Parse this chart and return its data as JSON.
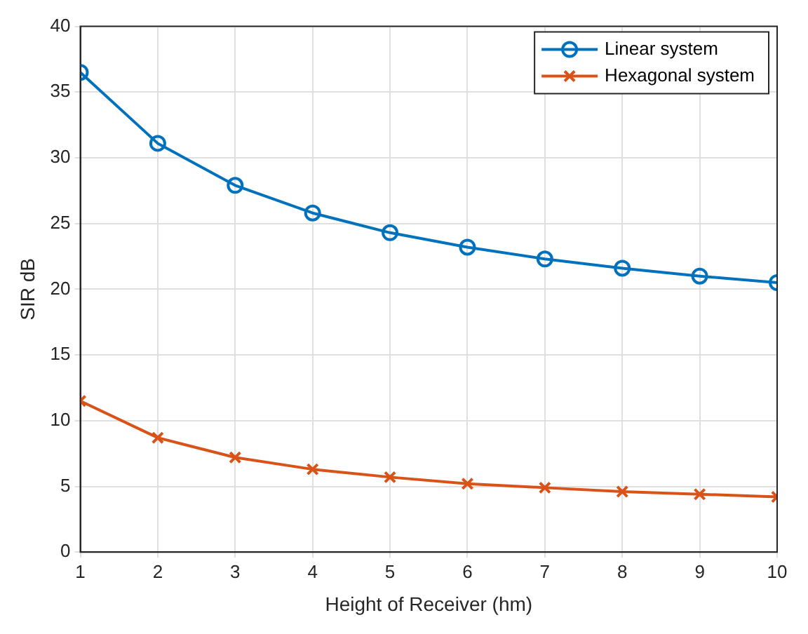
{
  "chart_data": {
    "type": "line",
    "xlabel": "Height of Receiver (hm)",
    "ylabel": "SIR dB",
    "x": [
      1,
      2,
      3,
      4,
      5,
      6,
      7,
      8,
      9,
      10
    ],
    "series": [
      {
        "name": "Linear system",
        "color": "#0072bd",
        "marker": "circle",
        "values": [
          36.5,
          31.1,
          27.9,
          25.8,
          24.3,
          23.2,
          22.3,
          21.6,
          21.0,
          20.5
        ]
      },
      {
        "name": "Hexagonal system",
        "color": "#d95319",
        "marker": "cross",
        "values": [
          11.5,
          8.7,
          7.2,
          6.3,
          5.7,
          5.2,
          4.9,
          4.6,
          4.4,
          4.2
        ]
      }
    ],
    "xlim": [
      1,
      10
    ],
    "xticks": [
      1,
      2,
      3,
      4,
      5,
      6,
      7,
      8,
      9,
      10
    ],
    "ylim": [
      0,
      40
    ],
    "yticks": [
      0,
      5,
      10,
      15,
      20,
      25,
      30,
      35,
      40
    ],
    "grid": true,
    "legend": "top right",
    "line_style": "solid"
  }
}
